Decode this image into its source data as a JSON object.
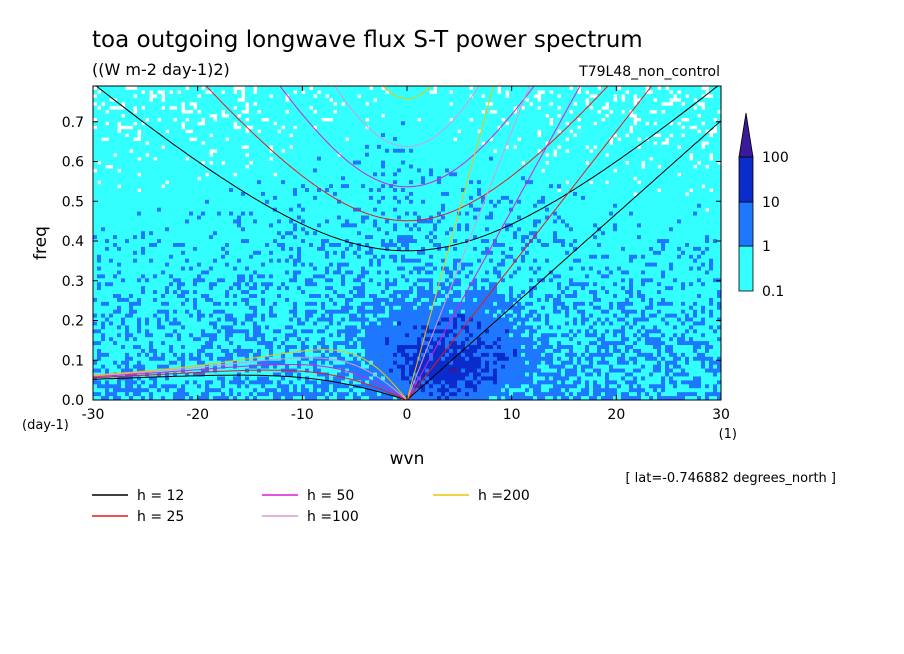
{
  "title": "toa outgoing longwave flux S-T power spectrum",
  "subtitle": "((W m-2 day-1)2)",
  "experiment": "T79L48_non_control",
  "footnote": "[ lat=-0.746882 degrees_north ]",
  "chart_data": {
    "type": "heatmap",
    "xlabel": "wvn",
    "ylabel": "freq",
    "x_unit_label": "(1)",
    "y_unit_label": "(day-1)",
    "xlim": [
      -30,
      30
    ],
    "ylim": [
      0,
      0.79
    ],
    "x_ticks": [
      -30,
      -20,
      -10,
      0,
      10,
      20,
      30
    ],
    "y_ticks": [
      0.0,
      0.1,
      0.2,
      0.3,
      0.4,
      0.5,
      0.6,
      0.7
    ],
    "x_tick_labels": [
      "-30",
      "-20",
      "-10",
      "0",
      "10",
      "20",
      "30"
    ],
    "y_tick_labels": [
      "0.0",
      "0.1",
      "0.2",
      "0.3",
      "0.4",
      "0.5",
      "0.6",
      "0.7"
    ],
    "colorbar": {
      "levels": [
        0.1,
        1,
        10,
        100
      ],
      "level_labels": [
        "0.1",
        "1",
        "10",
        "100"
      ],
      "colors": [
        "#ffffff",
        "#33ffff",
        "#1e78ff",
        "#0a2ccc",
        "#3b1a9a"
      ]
    },
    "dispersion_curves": [
      {
        "name": "h = 12",
        "h": 12,
        "color": "#000000"
      },
      {
        "name": "h = 25",
        "h": 25,
        "color": "#e41a1c"
      },
      {
        "name": "h = 50",
        "h": 50,
        "color": "#d61fd6"
      },
      {
        "name": "h =100",
        "h": 100,
        "color": "#d59ad6"
      },
      {
        "name": "h =200",
        "h": 200,
        "color": "#f2c300"
      }
    ]
  }
}
